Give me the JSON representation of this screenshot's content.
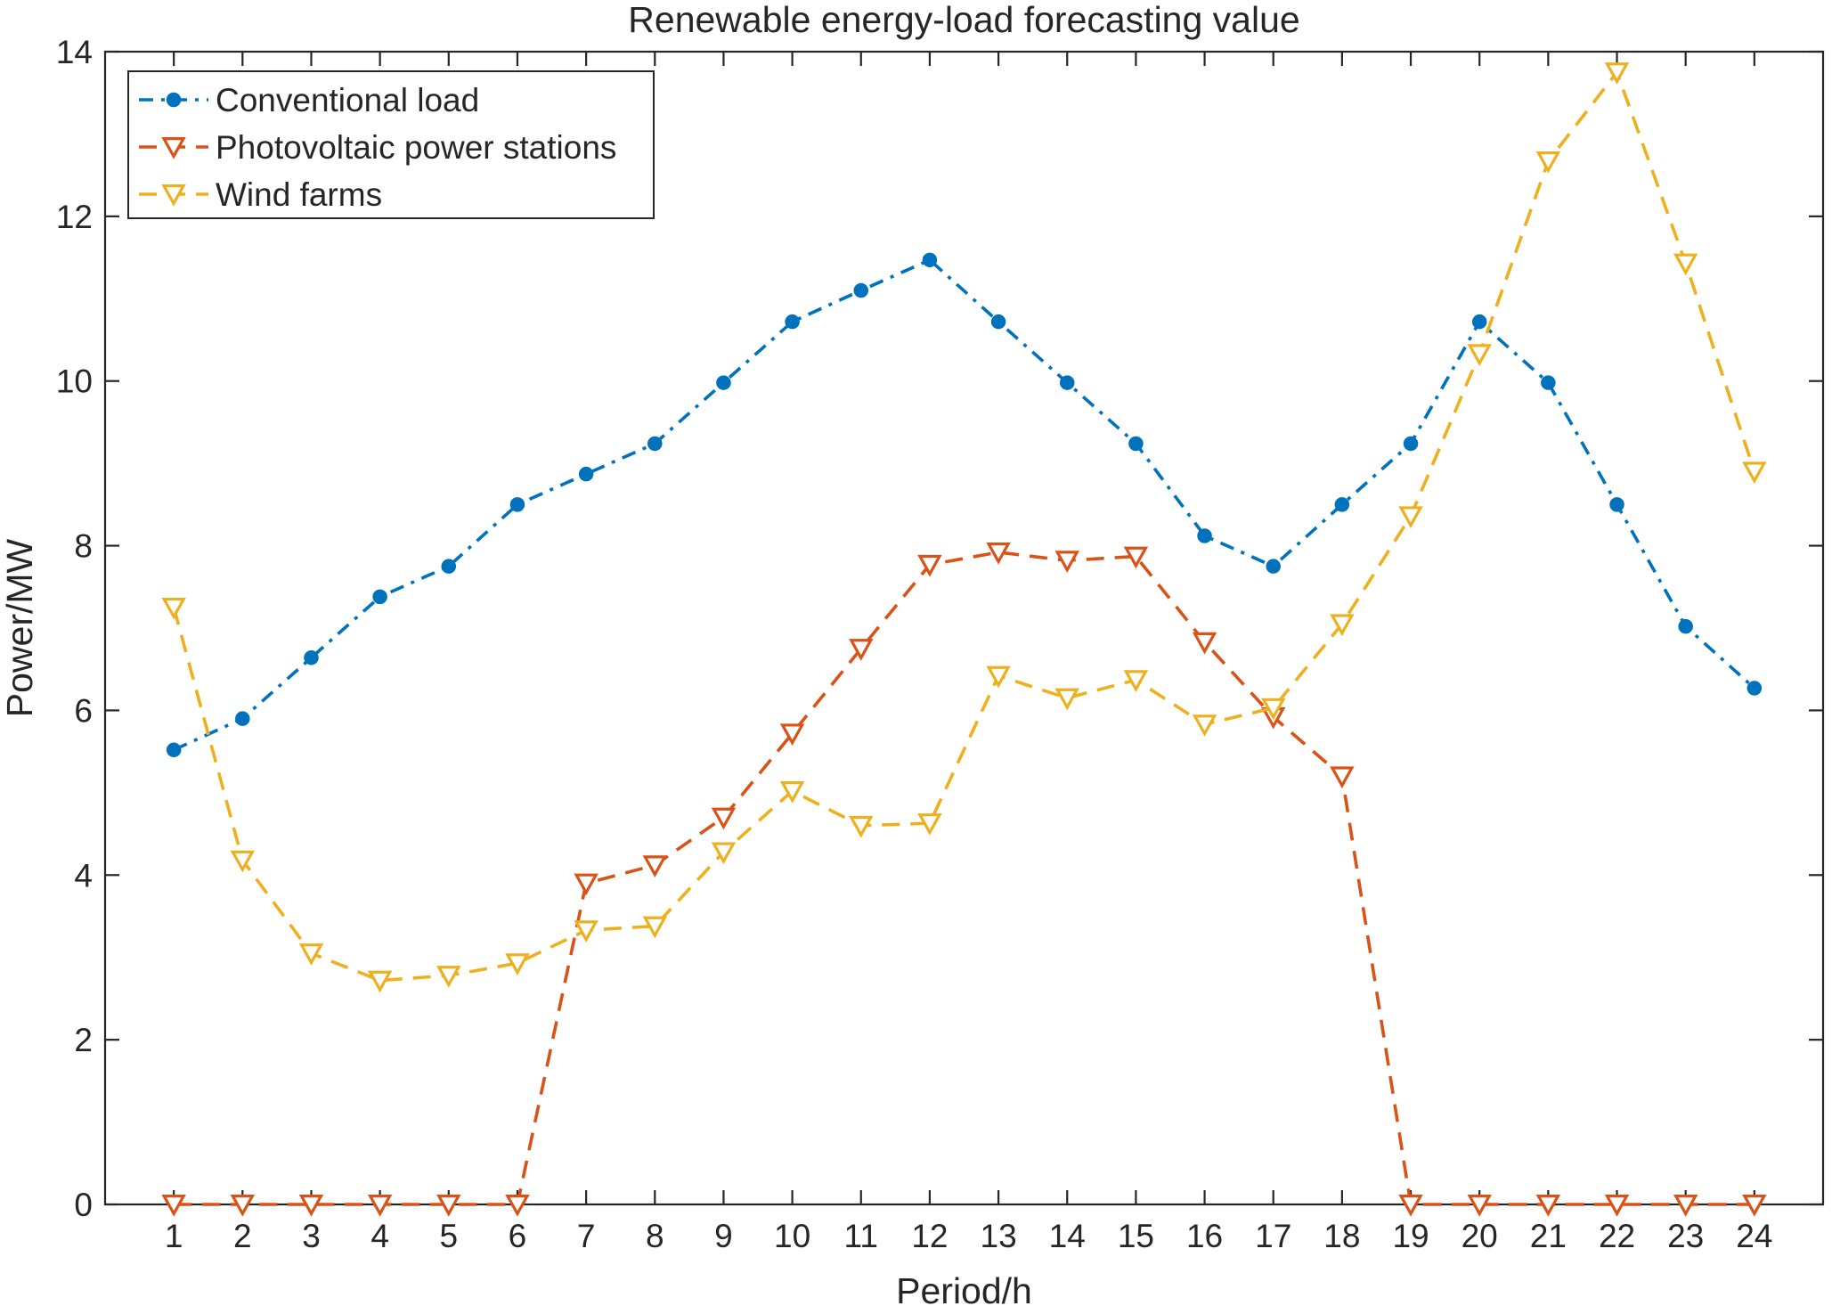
{
  "chart_data": {
    "type": "line",
    "title": "Renewable energy-load forecasting value",
    "xlabel": "Period/h",
    "ylabel": "Power/MW",
    "x": [
      1,
      2,
      3,
      4,
      5,
      6,
      7,
      8,
      9,
      10,
      11,
      12,
      13,
      14,
      15,
      16,
      17,
      18,
      19,
      20,
      21,
      22,
      23,
      24
    ],
    "xlim": [
      0,
      25
    ],
    "ylim": [
      0,
      14
    ],
    "yticks": [
      "0",
      "2",
      "4",
      "6",
      "8",
      "10",
      "12",
      "14"
    ],
    "xticks": [
      "1",
      "2",
      "3",
      "4",
      "5",
      "6",
      "7",
      "8",
      "9",
      "10",
      "11",
      "12",
      "13",
      "14",
      "15",
      "16",
      "17",
      "18",
      "19",
      "20",
      "21",
      "22",
      "23",
      "24"
    ],
    "grid": false,
    "legend_position": "top-left",
    "series": [
      {
        "name": "Conventional load",
        "color": "#0072BD",
        "dash": "dash-dot",
        "marker": "circle",
        "values": [
          5.52,
          5.9,
          6.64,
          7.38,
          7.75,
          8.5,
          8.87,
          9.24,
          9.98,
          10.72,
          11.1,
          11.47,
          10.72,
          9.98,
          9.24,
          8.12,
          7.75,
          8.5,
          9.24,
          10.72,
          9.98,
          8.5,
          7.02,
          6.27
        ]
      },
      {
        "name": "Photovoltaic power stations",
        "color": "#D95319",
        "dash": "dashed",
        "marker": "triangle-down",
        "values": [
          0,
          0,
          0,
          0,
          0,
          0,
          3.9,
          4.12,
          4.7,
          5.72,
          6.75,
          7.77,
          7.92,
          7.82,
          7.87,
          6.83,
          5.92,
          5.2,
          0,
          0,
          0,
          0,
          0,
          0
        ]
      },
      {
        "name": "Wind farms",
        "color": "#EDB120",
        "dash": "dashed",
        "marker": "triangle-down",
        "values": [
          7.25,
          4.18,
          3.05,
          2.72,
          2.78,
          2.93,
          3.33,
          3.38,
          4.28,
          5.02,
          4.6,
          4.63,
          6.42,
          6.15,
          6.37,
          5.83,
          6.03,
          7.05,
          8.36,
          10.33,
          12.67,
          13.75,
          11.43,
          8.9
        ]
      }
    ]
  }
}
